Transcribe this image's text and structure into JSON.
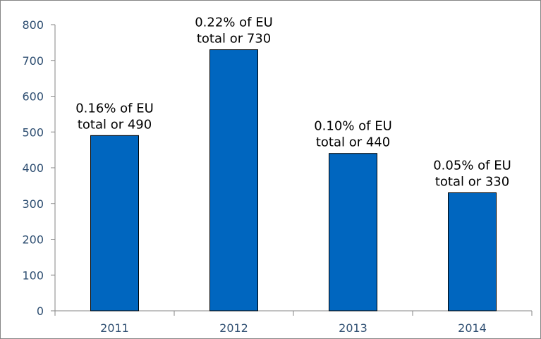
{
  "chart_data": {
    "type": "bar",
    "categories": [
      "2011",
      "2012",
      "2013",
      "2014"
    ],
    "values": [
      490,
      730,
      440,
      330
    ],
    "data_labels": [
      [
        "0.16% of EU",
        "total or 490"
      ],
      [
        "0.22% of EU",
        "total or 730"
      ],
      [
        "0.10% of EU",
        "total or 440"
      ],
      [
        "0.05% of EU",
        "total or 330"
      ]
    ],
    "title": "",
    "xlabel": "",
    "ylabel": "",
    "ylim": [
      0,
      800
    ],
    "yticks": [
      0,
      100,
      200,
      300,
      400,
      500,
      600,
      700,
      800
    ],
    "grid": false,
    "legend": "none",
    "bar_color": "#0066bf",
    "bar_edge_color": "#000000",
    "axis_color": "#868686",
    "tick_label_color": "#2f4f72"
  }
}
